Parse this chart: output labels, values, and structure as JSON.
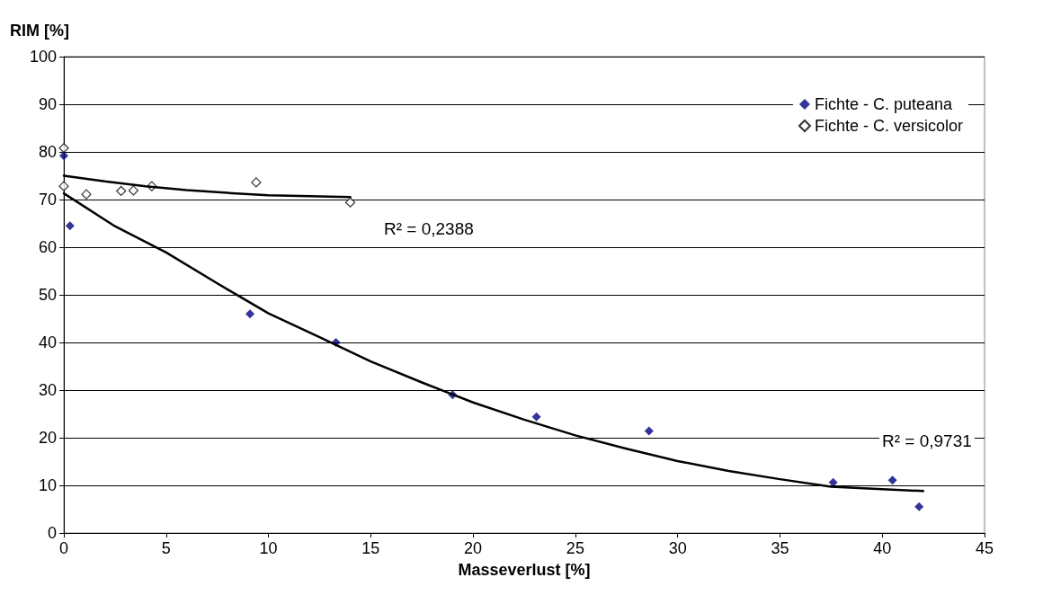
{
  "chart_data": {
    "type": "scatter",
    "xlabel": "Masseverlust [%]",
    "ylabel": "RIM [%]",
    "xlim": [
      0,
      45
    ],
    "xticks": [
      0,
      5,
      10,
      15,
      20,
      25,
      30,
      35,
      40,
      45
    ],
    "ylim": [
      0,
      100
    ],
    "yticks": [
      0,
      10,
      20,
      30,
      40,
      50,
      60,
      70,
      80,
      90,
      100
    ],
    "grid": "y",
    "legend": "top right",
    "marker": "diamond",
    "series": [
      {
        "name": "Fichte - C. puteana",
        "color": "#000080",
        "x": [
          0,
          0.3,
          9.1,
          13.3,
          19.0,
          23.1,
          28.6,
          37.6,
          40.5,
          41.8
        ],
        "values": [
          79.2,
          64.5,
          46.0,
          40.0,
          29.0,
          24.4,
          21.4,
          10.6,
          11.1,
          5.5
        ]
      },
      {
        "name": "Fichte - C. versicolor",
        "color": "#000000",
        "x": [
          0,
          0,
          1.1,
          2.8,
          3.4,
          4.3,
          9.4,
          14.0
        ],
        "values": [
          80.8,
          72.8,
          71.1,
          71.8,
          71.9,
          72.8,
          73.6,
          69.4
        ]
      },
      {
        "type": "line",
        "color": "#000000",
        "marker": "none",
        "x": [
          0,
          2.5,
          5,
          7.5,
          10,
          12.5,
          15,
          17.5,
          20,
          22.5,
          25,
          27.5,
          30,
          32.5,
          35,
          37.5,
          40,
          42
        ],
        "values": [
          71.3,
          64.4,
          58.9,
          52.4,
          46.1,
          41.1,
          36.0,
          31.6,
          27.4,
          23.8,
          20.5,
          17.7,
          15.1,
          13.0,
          11.3,
          9.7,
          9.2,
          8.8
        ]
      },
      {
        "type": "line",
        "color": "#000000",
        "marker": "none",
        "x": [
          0,
          2,
          4,
          6,
          8,
          10,
          12,
          14
        ],
        "values": [
          75.0,
          73.8,
          72.8,
          72.0,
          71.4,
          70.9,
          70.7,
          70.5
        ]
      }
    ],
    "annotations": [
      "R² = 0,2388",
      "R² = 0,9731"
    ]
  }
}
